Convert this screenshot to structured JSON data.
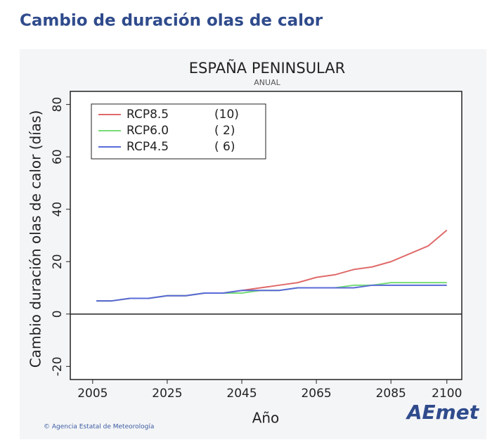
{
  "header": "Cambio de duración olas de calor",
  "footer": "© Agencia Estatal de Meteorología",
  "logo": "AEmet",
  "chart_data": {
    "type": "line",
    "title": "ESPAÑA PENINSULAR",
    "subtitle": "ANUAL",
    "x_label": "Año",
    "y_label": "Cambio duración olas de calor (días)",
    "x": [
      2006,
      2010,
      2015,
      2020,
      2025,
      2030,
      2035,
      2040,
      2045,
      2050,
      2055,
      2060,
      2065,
      2070,
      2075,
      2080,
      2085,
      2090,
      2095,
      2100
    ],
    "series": [
      {
        "name": "RCP8.5",
        "models": "(10)",
        "color": "#e06a6a",
        "values": [
          5,
          5,
          6,
          6,
          7,
          7,
          8,
          8,
          9,
          10,
          11,
          12,
          14,
          15,
          17,
          18,
          20,
          23,
          26,
          32
        ]
      },
      {
        "name": "RCP6.0",
        "models": "( 2)",
        "color": "#77dd77",
        "values": [
          5,
          5,
          6,
          6,
          7,
          7,
          8,
          8,
          8,
          9,
          9,
          10,
          10,
          10,
          11,
          11,
          12,
          12,
          12,
          12
        ]
      },
      {
        "name": "RCP4.5",
        "models": "( 6)",
        "color": "#5a6ad8",
        "values": [
          5,
          5,
          6,
          6,
          7,
          7,
          8,
          8,
          9,
          9,
          9,
          10,
          10,
          10,
          10,
          11,
          11,
          11,
          11,
          11
        ]
      }
    ],
    "xlim": [
      1999,
      2104
    ],
    "ylim": [
      -25,
      85
    ],
    "xticks": [
      2005,
      2025,
      2045,
      2065,
      2085,
      2100
    ],
    "yticks": [
      -20,
      0,
      20,
      40,
      60,
      80
    ],
    "hline": 0,
    "legend": "upper left"
  }
}
